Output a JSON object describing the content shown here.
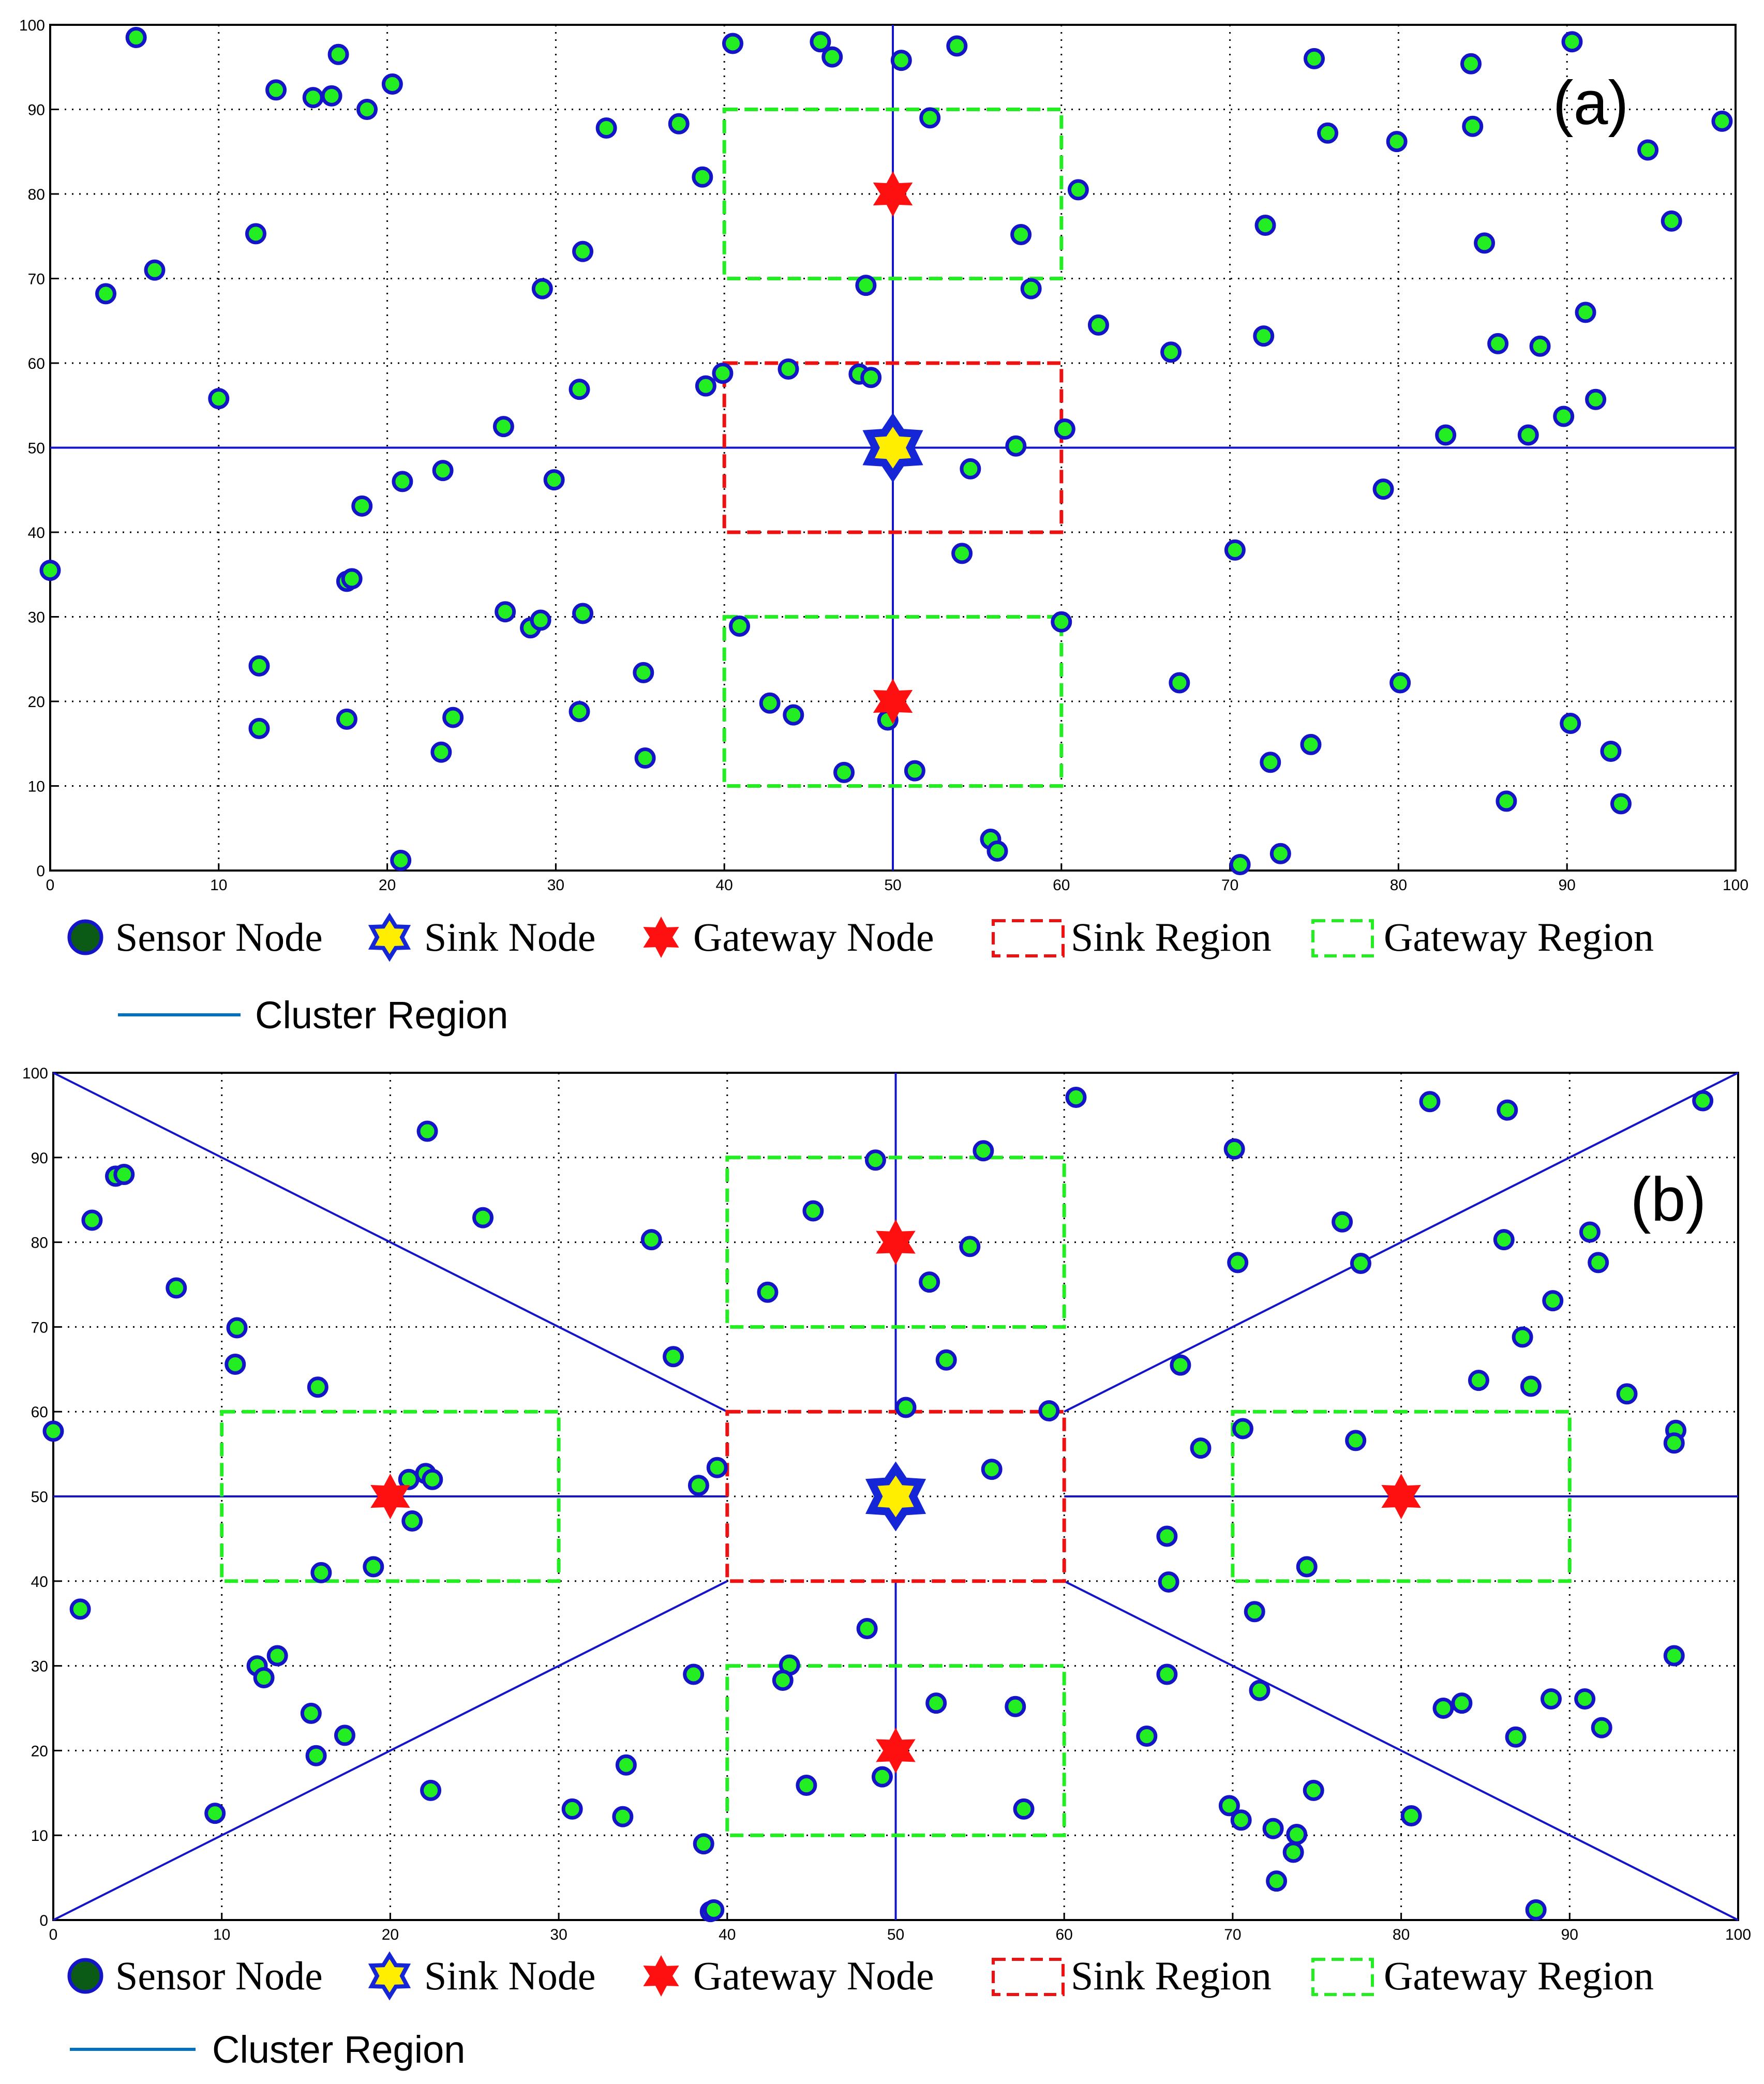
{
  "colors": {
    "sensor_fill": "#22ee22",
    "sensor_edge": "#1414c8",
    "legend_sensor_fill": "#0b5a16",
    "sink_fill": "#ffee00",
    "sink_edge": "#1426d6",
    "gateway": "#ff1010",
    "sink_region": "#ee1111",
    "gateway_region": "#22ee22",
    "cluster_line": "#1414c8",
    "legend_cluster_line": "#0070c0",
    "grid": "#000000"
  },
  "legend": {
    "sensor": "Sensor Node",
    "sink": "Sink Node",
    "gateway": "Gateway Node",
    "sink_region": "Sink Region",
    "gateway_region": "Gateway Region",
    "cluster": "Cluster Region"
  },
  "chart_data": [
    {
      "type": "scatter",
      "panel_label": "(a)",
      "xlim": [
        0,
        100
      ],
      "ylim": [
        0,
        100
      ],
      "xticks": [
        0,
        10,
        20,
        30,
        40,
        50,
        60,
        70,
        80,
        90,
        100
      ],
      "yticks": [
        0,
        10,
        20,
        30,
        40,
        50,
        60,
        70,
        80,
        90,
        100
      ],
      "grid": true,
      "sink": [
        50,
        50
      ],
      "gateways": [
        [
          50,
          80
        ],
        [
          50,
          20
        ]
      ],
      "sink_region": [
        40,
        40,
        60,
        60
      ],
      "gateway_regions": [
        [
          40,
          70,
          60,
          90
        ],
        [
          40,
          10,
          60,
          30
        ]
      ],
      "cluster_lines": [
        [
          [
            50,
            0
          ],
          [
            50,
            100
          ]
        ],
        [
          [
            0,
            50
          ],
          [
            100,
            50
          ]
        ]
      ],
      "sensors": [
        [
          5.1,
          98.5
        ],
        [
          17.1,
          96.5
        ],
        [
          20.3,
          93
        ],
        [
          13.4,
          92.3
        ],
        [
          15.6,
          91.4
        ],
        [
          16.7,
          91.6
        ],
        [
          18.8,
          90
        ],
        [
          40.5,
          97.8
        ],
        [
          45.7,
          98
        ],
        [
          46.4,
          96.2
        ],
        [
          50.5,
          95.8
        ],
        [
          53.8,
          97.5
        ],
        [
          33,
          87.8
        ],
        [
          37.3,
          88.3
        ],
        [
          38.7,
          82
        ],
        [
          52.2,
          89
        ],
        [
          61,
          80.5
        ],
        [
          12.2,
          75.3
        ],
        [
          6.2,
          71
        ],
        [
          3.3,
          68.2
        ],
        [
          29.2,
          68.8
        ],
        [
          31.6,
          73.2
        ],
        [
          48.4,
          69.2
        ],
        [
          57.6,
          75.2
        ],
        [
          58.2,
          68.8
        ],
        [
          62.2,
          64.5
        ],
        [
          66.5,
          61.3
        ],
        [
          10,
          55.8
        ],
        [
          31.4,
          56.9
        ],
        [
          38.9,
          57.3
        ],
        [
          39.9,
          58.8
        ],
        [
          43.8,
          59.3
        ],
        [
          48,
          58.7
        ],
        [
          48.7,
          58.3
        ],
        [
          26.9,
          52.5
        ],
        [
          23.3,
          47.3
        ],
        [
          20.9,
          46
        ],
        [
          29.9,
          46.2
        ],
        [
          18.5,
          43.1
        ],
        [
          57.3,
          50.2
        ],
        [
          60.2,
          52.2
        ],
        [
          54.6,
          47.5
        ],
        [
          54.1,
          37.5
        ],
        [
          0,
          35.5
        ],
        [
          17.6,
          34.2
        ],
        [
          17.9,
          34.5
        ],
        [
          27,
          30.6
        ],
        [
          28.5,
          28.7
        ],
        [
          29.1,
          29.6
        ],
        [
          31.6,
          30.4
        ],
        [
          40.9,
          28.9
        ],
        [
          35.2,
          23.4
        ],
        [
          12.4,
          24.2
        ],
        [
          12.4,
          16.8
        ],
        [
          17.6,
          17.9
        ],
        [
          23.9,
          18.1
        ],
        [
          31.4,
          18.8
        ],
        [
          23.2,
          14
        ],
        [
          35.3,
          13.3
        ],
        [
          42.7,
          19.8
        ],
        [
          44.1,
          18.4
        ],
        [
          49.7,
          17.8
        ],
        [
          47.1,
          11.6
        ],
        [
          51.3,
          11.8
        ],
        [
          55.8,
          3.7
        ],
        [
          56.2,
          2.3
        ],
        [
          20.8,
          1.2
        ],
        [
          60,
          29.4
        ],
        [
          70.3,
          37.9
        ],
        [
          67,
          22.2
        ],
        [
          72.4,
          12.8
        ],
        [
          74.8,
          14.9
        ],
        [
          70.6,
          0.7
        ],
        [
          73,
          2
        ],
        [
          75,
          96
        ],
        [
          84.3,
          95.4
        ],
        [
          90.3,
          98
        ],
        [
          75.8,
          87.2
        ],
        [
          79.9,
          86.2
        ],
        [
          84.4,
          88
        ],
        [
          99.2,
          88.6
        ],
        [
          94.8,
          85.2
        ],
        [
          72.1,
          76.3
        ],
        [
          85.1,
          74.2
        ],
        [
          96.2,
          76.8
        ],
        [
          72,
          63.2
        ],
        [
          85.9,
          62.3
        ],
        [
          88.4,
          62
        ],
        [
          91.1,
          66
        ],
        [
          82.8,
          51.5
        ],
        [
          87.7,
          51.5
        ],
        [
          89.8,
          53.7
        ],
        [
          91.7,
          55.7
        ],
        [
          79.1,
          45.1
        ],
        [
          80.1,
          22.2
        ],
        [
          90.2,
          17.4
        ],
        [
          92.6,
          14.1
        ],
        [
          86.4,
          8.2
        ],
        [
          93.2,
          7.9
        ]
      ]
    },
    {
      "type": "scatter",
      "panel_label": "(b)",
      "xlim": [
        0,
        100
      ],
      "ylim": [
        0,
        100
      ],
      "xticks": [
        0,
        10,
        20,
        30,
        40,
        50,
        60,
        70,
        80,
        90,
        100
      ],
      "yticks": [
        0,
        10,
        20,
        30,
        40,
        50,
        60,
        70,
        80,
        90,
        100
      ],
      "grid": true,
      "sink": [
        50,
        50
      ],
      "gateways": [
        [
          50,
          80
        ],
        [
          50,
          20
        ],
        [
          20,
          50
        ],
        [
          80,
          50
        ]
      ],
      "sink_region": [
        40,
        40,
        60,
        60
      ],
      "gateway_regions": [
        [
          40,
          70,
          60,
          90
        ],
        [
          40,
          10,
          60,
          30
        ],
        [
          10,
          40,
          30,
          60
        ],
        [
          70,
          40,
          90,
          60
        ]
      ],
      "cluster_lines": [
        [
          [
            0,
            100
          ],
          [
            40,
            60
          ]
        ],
        [
          [
            0,
            0
          ],
          [
            40,
            40
          ]
        ],
        [
          [
            100,
            100
          ],
          [
            60,
            60
          ]
        ],
        [
          [
            100,
            0
          ],
          [
            60,
            40
          ]
        ],
        [
          [
            50,
            60
          ],
          [
            50,
            100
          ]
        ],
        [
          [
            50,
            0
          ],
          [
            50,
            40
          ]
        ],
        [
          [
            0,
            50
          ],
          [
            40,
            50
          ]
        ],
        [
          [
            60,
            50
          ],
          [
            100,
            50
          ]
        ]
      ],
      "sensors": [
        [
          22.2,
          93.1
        ],
        [
          3.7,
          87.8
        ],
        [
          4.2,
          88
        ],
        [
          2.3,
          82.6
        ],
        [
          25.5,
          82.9
        ],
        [
          35.5,
          80.3
        ],
        [
          7.3,
          74.6
        ],
        [
          10.9,
          69.9
        ],
        [
          10.8,
          65.6
        ],
        [
          36.8,
          66.5
        ],
        [
          15.7,
          62.9
        ],
        [
          0,
          57.7
        ],
        [
          39.4,
          53.4
        ],
        [
          38.3,
          51.3
        ],
        [
          21.1,
          52
        ],
        [
          22.1,
          52.7
        ],
        [
          22.5,
          52
        ],
        [
          21.3,
          47.1
        ],
        [
          15.9,
          41
        ],
        [
          19,
          41.7
        ],
        [
          1.6,
          36.7
        ],
        [
          12.1,
          30
        ],
        [
          12.5,
          28.6
        ],
        [
          13.3,
          31.2
        ],
        [
          15.3,
          24.4
        ],
        [
          15.6,
          19.4
        ],
        [
          17.3,
          21.8
        ],
        [
          22.4,
          15.3
        ],
        [
          9.6,
          12.6
        ],
        [
          38,
          29
        ],
        [
          34,
          18.3
        ],
        [
          30.8,
          13.1
        ],
        [
          33.8,
          12.2
        ],
        [
          38.6,
          9
        ],
        [
          39,
          1
        ],
        [
          39.2,
          1.2
        ],
        [
          48.8,
          89.7
        ],
        [
          55.2,
          90.8
        ],
        [
          60.7,
          97.1
        ],
        [
          45.1,
          83.7
        ],
        [
          54.4,
          79.5
        ],
        [
          42.4,
          74.1
        ],
        [
          52,
          75.3
        ],
        [
          53,
          66.1
        ],
        [
          50.6,
          60.5
        ],
        [
          59.1,
          60.1
        ],
        [
          55.7,
          53.2
        ],
        [
          48.3,
          34.4
        ],
        [
          43.7,
          30.1
        ],
        [
          43.3,
          28.3
        ],
        [
          52.4,
          25.6
        ],
        [
          57.1,
          25.2
        ],
        [
          44.7,
          15.9
        ],
        [
          49.2,
          16.9
        ],
        [
          57.6,
          13.1
        ],
        [
          70.1,
          91
        ],
        [
          81.7,
          96.6
        ],
        [
          86.3,
          95.6
        ],
        [
          97.9,
          96.7
        ],
        [
          76.5,
          82.4
        ],
        [
          70.3,
          77.6
        ],
        [
          77.6,
          77.5
        ],
        [
          86.1,
          80.3
        ],
        [
          91.2,
          81.2
        ],
        [
          91.7,
          77.6
        ],
        [
          89,
          73.1
        ],
        [
          87.2,
          68.8
        ],
        [
          66.9,
          65.5
        ],
        [
          84.6,
          63.7
        ],
        [
          87.7,
          63
        ],
        [
          93.4,
          62.1
        ],
        [
          70.6,
          58
        ],
        [
          77.3,
          56.6
        ],
        [
          68.1,
          55.7
        ],
        [
          96.3,
          57.8
        ],
        [
          96.2,
          56.3
        ],
        [
          66.1,
          45.3
        ],
        [
          66.2,
          39.9
        ],
        [
          74.4,
          41.7
        ],
        [
          71.3,
          36.4
        ],
        [
          71.6,
          27.1
        ],
        [
          66.1,
          29
        ],
        [
          96.2,
          31.2
        ],
        [
          64.9,
          21.7
        ],
        [
          82.5,
          25
        ],
        [
          83.6,
          25.6
        ],
        [
          88.9,
          26.1
        ],
        [
          90.9,
          26.1
        ],
        [
          86.8,
          21.6
        ],
        [
          91.9,
          22.7
        ],
        [
          74.8,
          15.3
        ],
        [
          69.8,
          13.5
        ],
        [
          70.5,
          11.8
        ],
        [
          72.4,
          10.8
        ],
        [
          73.8,
          10.1
        ],
        [
          73.6,
          8
        ],
        [
          72.6,
          4.6
        ],
        [
          80.6,
          12.3
        ],
        [
          88,
          1.2
        ]
      ]
    }
  ]
}
